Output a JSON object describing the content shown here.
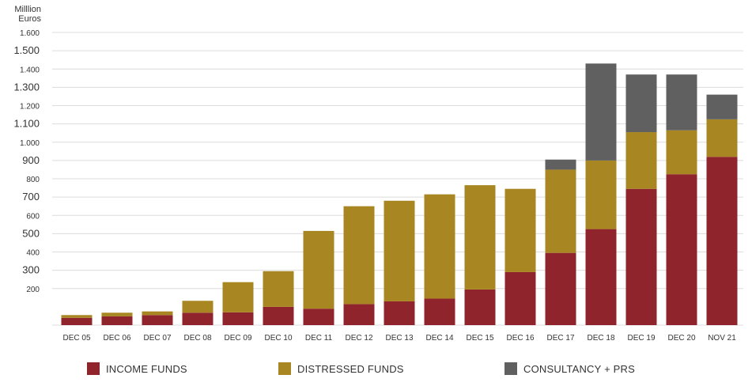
{
  "chart_data": {
    "type": "bar",
    "stacked": true,
    "ylabel_lines": [
      "Milllion",
      "Euros"
    ],
    "categories": [
      "DEC 05",
      "DEC 06",
      "DEC 07",
      "DEC 08",
      "DEC 09",
      "DEC 10",
      "DEC 11",
      "DEC 12",
      "DEC 13",
      "DEC 14",
      "DEC 15",
      "DEC 16",
      "DEC 17",
      "DEC 18",
      "DEC 19",
      "DEC 20",
      "NOV  21"
    ],
    "y_ticks": [
      {
        "value": 200,
        "label": "200",
        "size": "small"
      },
      {
        "value": 300,
        "label": "300",
        "size": "large"
      },
      {
        "value": 400,
        "label": "400",
        "size": "small"
      },
      {
        "value": 500,
        "label": "500",
        "size": "large"
      },
      {
        "value": 600,
        "label": "600",
        "size": "small"
      },
      {
        "value": 700,
        "label": "700",
        "size": "large"
      },
      {
        "value": 800,
        "label": "800",
        "size": "small"
      },
      {
        "value": 900,
        "label": "900",
        "size": "large"
      },
      {
        "value": 1000,
        "label": "1.000",
        "size": "small"
      },
      {
        "value": 1100,
        "label": "1.100",
        "size": "large"
      },
      {
        "value": 1200,
        "label": "1.200",
        "size": "small"
      },
      {
        "value": 1300,
        "label": "1.300",
        "size": "large"
      },
      {
        "value": 1400,
        "label": "1.400",
        "size": "small"
      },
      {
        "value": 1500,
        "label": "1.500",
        "size": "large"
      },
      {
        "value": 1600,
        "label": "1.600",
        "size": "small"
      }
    ],
    "ylim": [
      0,
      1600
    ],
    "grid": true,
    "legend_position": "bottom",
    "series": [
      {
        "name": "INCOME FUNDS",
        "color": "#90242c",
        "values": [
          40,
          48,
          55,
          68,
          70,
          100,
          90,
          115,
          130,
          145,
          195,
          290,
          395,
          525,
          745,
          825,
          920
        ]
      },
      {
        "name": "DISTRESSED FUNDS",
        "color": "#a88722",
        "values": [
          15,
          20,
          20,
          65,
          165,
          195,
          425,
          535,
          550,
          570,
          570,
          455,
          455,
          375,
          310,
          240,
          205
        ]
      },
      {
        "name": "CONSULTANCY + PRS",
        "color": "#606060",
        "values": [
          0,
          0,
          0,
          0,
          0,
          0,
          0,
          0,
          0,
          0,
          0,
          0,
          55,
          530,
          315,
          305,
          135
        ]
      }
    ]
  }
}
